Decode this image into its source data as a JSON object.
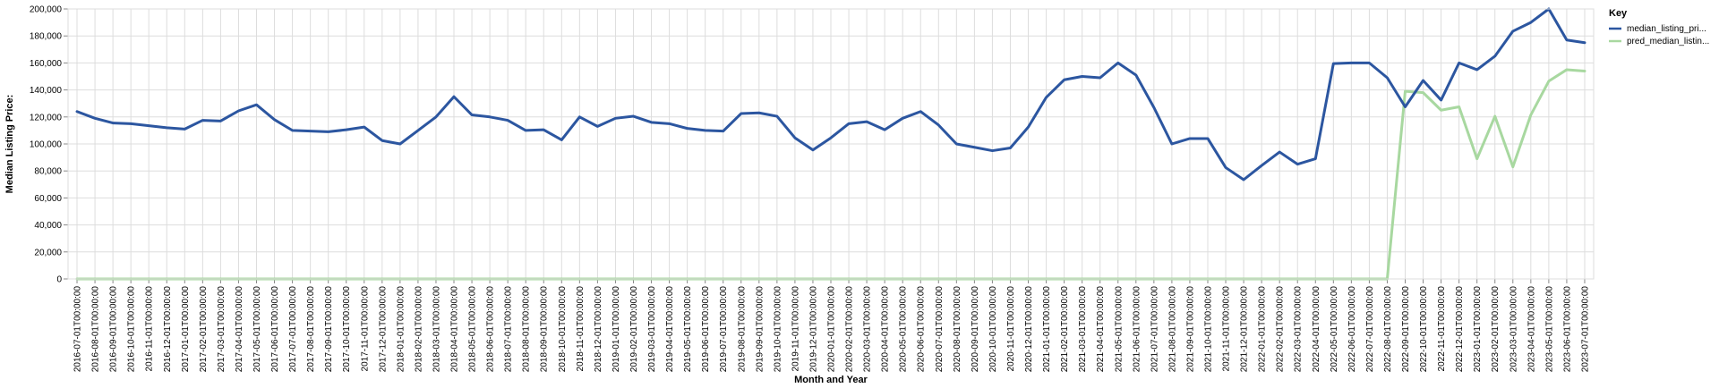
{
  "chart_data": {
    "type": "line",
    "title": "",
    "xlabel": "Month and Year",
    "ylabel": "Median Listing Price:",
    "ylim": [
      0,
      200000
    ],
    "yticks": [
      0,
      20000,
      40000,
      60000,
      80000,
      100000,
      120000,
      140000,
      160000,
      180000,
      200000
    ],
    "ytick_labels": [
      "0",
      "20,000",
      "40,000",
      "60,000",
      "80,000",
      "100,000",
      "120,000",
      "140,000",
      "160,000",
      "180,000",
      "200,000"
    ],
    "grid": true,
    "legend": {
      "title": "Key",
      "placement": "right"
    },
    "x": [
      "2016-07-01T00:00:00",
      "2016-08-01T00:00:00",
      "2016-09-01T00:00:00",
      "2016-10-01T00:00:00",
      "2016-11-01T00:00:00",
      "2016-12-01T00:00:00",
      "2017-01-01T00:00:00",
      "2017-02-01T00:00:00",
      "2017-03-01T00:00:00",
      "2017-04-01T00:00:00",
      "2017-05-01T00:00:00",
      "2017-06-01T00:00:00",
      "2017-07-01T00:00:00",
      "2017-08-01T00:00:00",
      "2017-09-01T00:00:00",
      "2017-10-01T00:00:00",
      "2017-11-01T00:00:00",
      "2017-12-01T00:00:00",
      "2018-01-01T00:00:00",
      "2018-02-01T00:00:00",
      "2018-03-01T00:00:00",
      "2018-04-01T00:00:00",
      "2018-05-01T00:00:00",
      "2018-06-01T00:00:00",
      "2018-07-01T00:00:00",
      "2018-08-01T00:00:00",
      "2018-09-01T00:00:00",
      "2018-10-01T00:00:00",
      "2018-11-01T00:00:00",
      "2018-12-01T00:00:00",
      "2019-01-01T00:00:00",
      "2019-02-01T00:00:00",
      "2019-03-01T00:00:00",
      "2019-04-01T00:00:00",
      "2019-05-01T00:00:00",
      "2019-06-01T00:00:00",
      "2019-07-01T00:00:00",
      "2019-08-01T00:00:00",
      "2019-09-01T00:00:00",
      "2019-10-01T00:00:00",
      "2019-11-01T00:00:00",
      "2019-12-01T00:00:00",
      "2020-01-01T00:00:00",
      "2020-02-01T00:00:00",
      "2020-03-01T00:00:00",
      "2020-04-01T00:00:00",
      "2020-05-01T00:00:00",
      "2020-06-01T00:00:00",
      "2020-07-01T00:00:00",
      "2020-08-01T00:00:00",
      "2020-09-01T00:00:00",
      "2020-10-01T00:00:00",
      "2020-11-01T00:00:00",
      "2020-12-01T00:00:00",
      "2021-01-01T00:00:00",
      "2021-02-01T00:00:00",
      "2021-03-01T00:00:00",
      "2021-04-01T00:00:00",
      "2021-05-01T00:00:00",
      "2021-06-01T00:00:00",
      "2021-07-01T00:00:00",
      "2021-08-01T00:00:00",
      "2021-09-01T00:00:00",
      "2021-10-01T00:00:00",
      "2021-11-01T00:00:00",
      "2021-12-01T00:00:00",
      "2022-01-01T00:00:00",
      "2022-02-01T00:00:00",
      "2022-03-01T00:00:00",
      "2022-04-01T00:00:00",
      "2022-05-01T00:00:00",
      "2022-06-01T00:00:00",
      "2022-07-01T00:00:00",
      "2022-08-01T00:00:00",
      "2022-09-01T00:00:00",
      "2022-10-01T00:00:00",
      "2022-11-01T00:00:00",
      "2022-12-01T00:00:00",
      "2023-01-01T00:00:00",
      "2023-02-01T00:00:00",
      "2023-03-01T00:00:00",
      "2023-04-01T00:00:00",
      "2023-05-01T00:00:00",
      "2023-06-01T00:00:00",
      "2023-07-01T00:00:00"
    ],
    "series": [
      {
        "name": "median_listing_pri...",
        "color": "#2c56a0",
        "values": [
          124000,
          119000,
          115500,
          115000,
          113500,
          112000,
          111000,
          117500,
          117000,
          124500,
          129000,
          118000,
          110000,
          109500,
          109000,
          110500,
          112500,
          102500,
          100000,
          110000,
          120000,
          135000,
          121500,
          120000,
          117500,
          110000,
          110500,
          103000,
          120000,
          113000,
          119000,
          120500,
          116000,
          115000,
          111500,
          110000,
          109500,
          122500,
          123000,
          120500,
          104500,
          95500,
          104500,
          115000,
          116500,
          110500,
          119000,
          124000,
          114000,
          100000,
          97500,
          95000,
          97000,
          112500,
          134500,
          147500,
          150000,
          149000,
          160000,
          151000,
          127000,
          100000,
          104000,
          104000,
          82500,
          73500,
          84000,
          94000,
          85000,
          89000,
          159500,
          160000,
          160000,
          149000,
          127500,
          147000,
          132500,
          160000,
          155000,
          165000,
          183500,
          190000,
          200000,
          177000,
          175000
        ]
      },
      {
        "name": "pred_median_listin...",
        "color": "#a8d8a0",
        "values": [
          0,
          0,
          0,
          0,
          0,
          0,
          0,
          0,
          0,
          0,
          0,
          0,
          0,
          0,
          0,
          0,
          0,
          0,
          0,
          0,
          0,
          0,
          0,
          0,
          0,
          0,
          0,
          0,
          0,
          0,
          0,
          0,
          0,
          0,
          0,
          0,
          0,
          0,
          0,
          0,
          0,
          0,
          0,
          0,
          0,
          0,
          0,
          0,
          0,
          0,
          0,
          0,
          0,
          0,
          0,
          0,
          0,
          0,
          0,
          0,
          0,
          0,
          0,
          0,
          0,
          0,
          0,
          0,
          0,
          0,
          0,
          0,
          0,
          0,
          139000,
          138000,
          125000,
          127500,
          89000,
          120500,
          83000,
          121500,
          146500,
          155000,
          154000
        ]
      }
    ]
  }
}
